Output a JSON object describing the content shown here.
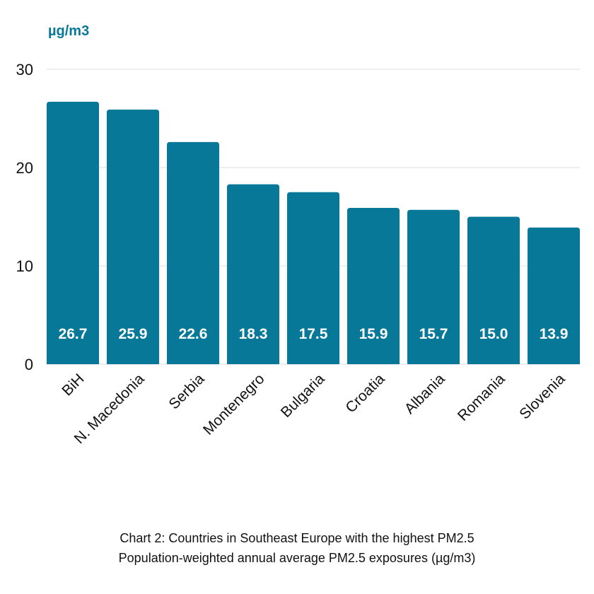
{
  "chart_data": {
    "type": "bar",
    "unit_label": "µg/m3",
    "categories": [
      "BiH",
      "N. Macedonia",
      "Serbia",
      "Montenegro",
      "Bulgaria",
      "Croatia",
      "Albania",
      "Romania",
      "Slovenia"
    ],
    "values": [
      26.7,
      25.9,
      22.6,
      18.3,
      17.5,
      15.9,
      15.7,
      15.0,
      13.9
    ],
    "data_labels": [
      "26.7",
      "25.9",
      "22.6",
      "18.3",
      "17.5",
      "15.9",
      "15.7",
      "15.0",
      "13.9"
    ],
    "yticks": [
      "0",
      "10",
      "20",
      "30"
    ],
    "ylim": [
      0,
      30
    ],
    "grid": true,
    "bar_color": "#087898",
    "unit_color": "#087898"
  },
  "caption": {
    "line1": "Chart 2: Countries in Southeast Europe with the highest PM2.5",
    "line2": "Population-weighted annual average PM2.5 exposures (µg/m3)"
  }
}
